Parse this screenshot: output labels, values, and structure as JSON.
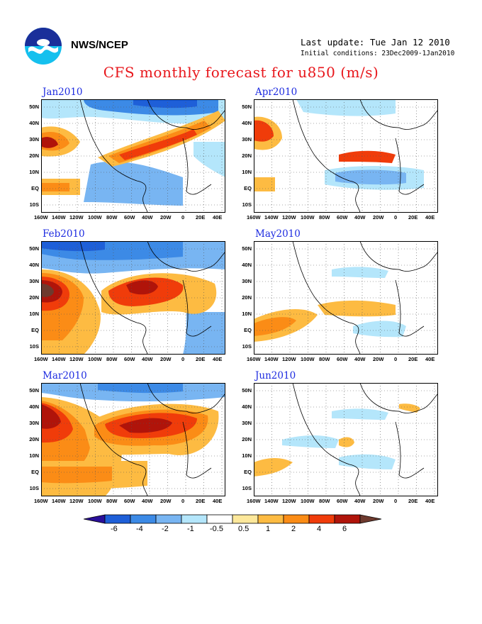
{
  "header": {
    "org": "NWS/NCEP",
    "last_update": "Last update: Tue Jan 12 2010",
    "initial_conditions": "Initial conditions: 23Dec2009-1Jan2010",
    "title": "CFS monthly forecast for u850 (m/s)"
  },
  "panels": [
    {
      "title": "Jan2010",
      "column": "left",
      "row": 1
    },
    {
      "title": "Feb2010",
      "column": "left",
      "row": 2
    },
    {
      "title": "Mar2010",
      "column": "left",
      "row": 3
    },
    {
      "title": "Apr2010",
      "column": "right",
      "row": 1
    },
    {
      "title": "May2010",
      "column": "right",
      "row": 2
    },
    {
      "title": "Jun2010",
      "column": "right",
      "row": 3
    }
  ],
  "axes": {
    "lat_labels": [
      "50N",
      "40N",
      "30N",
      "20N",
      "10N",
      "EQ",
      "10S"
    ],
    "lon_labels": [
      "160W",
      "140W",
      "120W",
      "100W",
      "80W",
      "60W",
      "40W",
      "20W",
      "0",
      "20E",
      "40E"
    ]
  },
  "colorbar": {
    "labels": [
      "-6",
      "-4",
      "-2",
      "-1",
      "-0.5",
      "0.5",
      "1",
      "2",
      "4",
      "6"
    ],
    "colors": [
      "#2a0f9a",
      "#1e5fd8",
      "#3c8ae6",
      "#78b5f2",
      "#b4e6fb",
      "#ffffff",
      "#fde89b",
      "#fdbb42",
      "#fb8c16",
      "#f03c0a",
      "#b0140a",
      "#6e3a2e"
    ]
  }
}
